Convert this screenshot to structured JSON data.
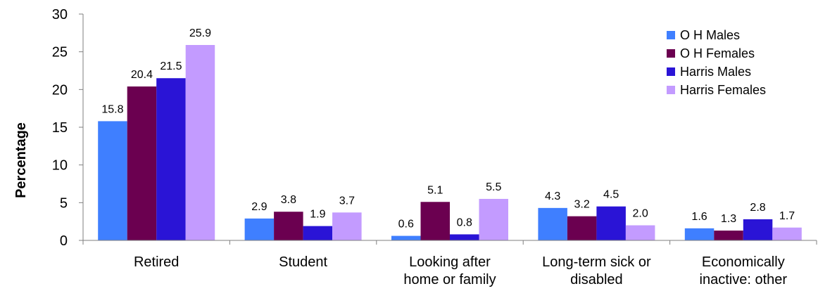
{
  "chart_data": {
    "type": "bar",
    "ylabel": "Percentage",
    "xlabel": "",
    "ylim": [
      0,
      30
    ],
    "yticks": [
      0,
      5,
      10,
      15,
      20,
      25,
      30
    ],
    "grid": false,
    "legend_position": "top-right",
    "categories": [
      [
        "Retired"
      ],
      [
        "Student"
      ],
      [
        "Looking after",
        "home or family"
      ],
      [
        "Long-term sick or",
        "disabled"
      ],
      [
        "Economically",
        "inactive: other"
      ]
    ],
    "series": [
      {
        "name": "O H Males",
        "color": "#3f7fff",
        "values": [
          15.8,
          2.9,
          0.6,
          4.3,
          1.6
        ],
        "labels": [
          "15.8",
          "2.9",
          "0.6",
          "4.3",
          "1.6"
        ]
      },
      {
        "name": "O H Females",
        "color": "#6b0050",
        "values": [
          20.4,
          3.8,
          5.1,
          3.2,
          1.3
        ],
        "labels": [
          "20.4",
          "3.8",
          "5.1",
          "3.2",
          "1.3"
        ]
      },
      {
        "name": "Harris Males",
        "color": "#2a14d6",
        "values": [
          21.5,
          1.9,
          0.8,
          4.5,
          2.8
        ],
        "labels": [
          "21.5",
          "1.9",
          "0.8",
          "4.5",
          "2.8"
        ]
      },
      {
        "name": "Harris Females",
        "color": "#c39bff",
        "values": [
          25.9,
          3.7,
          5.5,
          2.0,
          1.7
        ],
        "labels": [
          "25.9",
          "3.7",
          "5.5",
          "2.0",
          "1.7"
        ]
      }
    ]
  }
}
